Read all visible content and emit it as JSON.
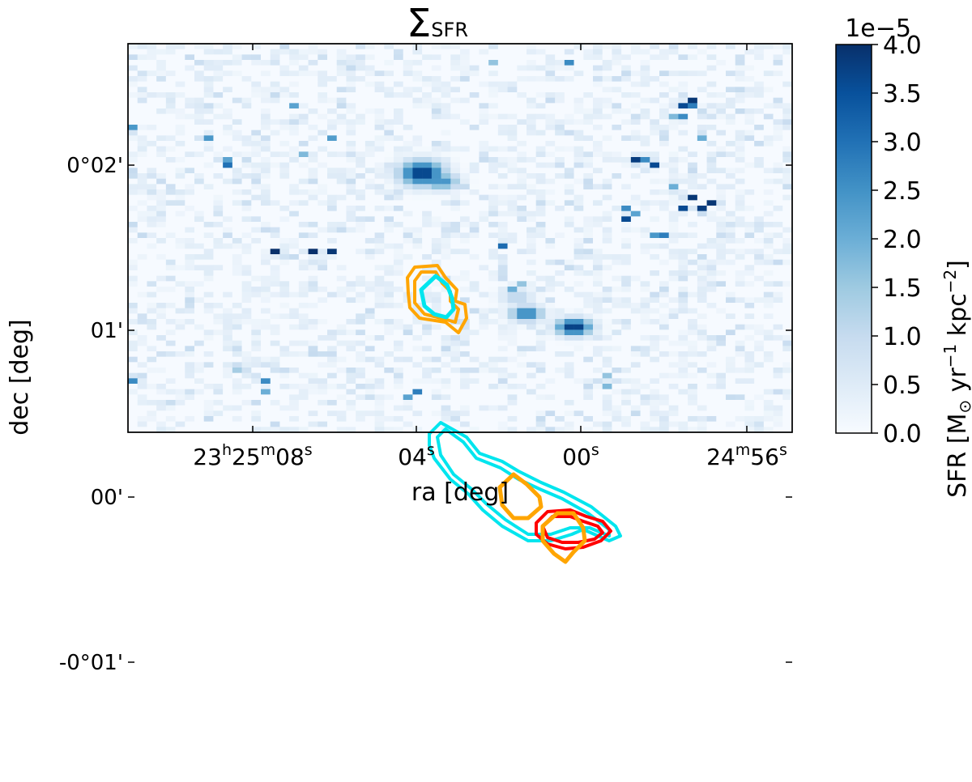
{
  "chart_data": {
    "type": "heatmap",
    "title": "Σ",
    "title_subscript": "SFR",
    "xlabel": "ra [deg]",
    "ylabel": "dec [deg]",
    "x_ticks": [
      {
        "main": "23",
        "sup1": "h",
        "mid": "25",
        "sup2": "m",
        "end": "08",
        "sup3": "s"
      },
      {
        "main": "04",
        "sup1": "s"
      },
      {
        "main": "00",
        "sup1": "s"
      },
      {
        "main": "24",
        "sup1": "m",
        "mid": "56",
        "sup2": "s"
      }
    ],
    "y_ticks": [
      "0°02'",
      "01'",
      "00'",
      "-0°01'"
    ],
    "colorbar": {
      "label_main": "SFR [M",
      "label_sun": "⊙",
      "label_units": " yr",
      "label_exp1": "−1",
      "label_units2": " kpc",
      "label_exp2": "−2",
      "label_end": "]",
      "multiplier": "1e−5",
      "ticks": [
        "0.0",
        "0.5",
        "1.0",
        "1.5",
        "2.0",
        "2.5",
        "3.0",
        "3.5",
        "4.0"
      ],
      "range": [
        0.0,
        4.0
      ],
      "cmap": [
        "#f7fbff",
        "#deebf7",
        "#c6dbef",
        "#9ecae1",
        "#6baed6",
        "#4292c6",
        "#2171b5",
        "#08519c",
        "#08306b"
      ]
    },
    "grid": false,
    "contour_colors": {
      "cyan": "#00e5ee",
      "orange": "#ffa500",
      "red": "#ff0000"
    },
    "image_grid": {
      "cols": 70,
      "rows": 72
    },
    "bright_pixels": [
      [
        38,
        3,
        1.6
      ],
      [
        46,
        3,
        2.6
      ],
      [
        17,
        11,
        2.2
      ],
      [
        59,
        10,
        3.9
      ],
      [
        58,
        11,
        3.6
      ],
      [
        59,
        11,
        2.8
      ],
      [
        0,
        15,
        2.4
      ],
      [
        57,
        13,
        1.8
      ],
      [
        58,
        13,
        2.6
      ],
      [
        8,
        17,
        2.4
      ],
      [
        21,
        17,
        2.3
      ],
      [
        60,
        17,
        2.0
      ],
      [
        18,
        20,
        1.8
      ],
      [
        53,
        21,
        3.8
      ],
      [
        54,
        21,
        2.6
      ],
      [
        55,
        22,
        3.6
      ],
      [
        10,
        22,
        3.0
      ],
      [
        10,
        21,
        2.2
      ],
      [
        57,
        26,
        2.0
      ],
      [
        59,
        28,
        3.9
      ],
      [
        58,
        30,
        3.6
      ],
      [
        60,
        30,
        3.8
      ],
      [
        61,
        29,
        3.9
      ],
      [
        52,
        30,
        2.6
      ],
      [
        52,
        32,
        3.6
      ],
      [
        53,
        31,
        2.2
      ],
      [
        55,
        35,
        2.4
      ],
      [
        56,
        35,
        2.8
      ],
      [
        39,
        37,
        3.1
      ],
      [
        15,
        38,
        4.0
      ],
      [
        19,
        38,
        4.0
      ],
      [
        21,
        38,
        3.9
      ],
      [
        41,
        44,
        1.6
      ],
      [
        40,
        45,
        2.0
      ],
      [
        0,
        62,
        2.6
      ],
      [
        14,
        62,
        2.6
      ],
      [
        14,
        64,
        2.0
      ],
      [
        30,
        64,
        2.8
      ],
      [
        29,
        65,
        2.2
      ],
      [
        50,
        61,
        1.6
      ],
      [
        50,
        63,
        1.8
      ],
      [
        11,
        60,
        1.4
      ]
    ],
    "blobs": [
      {
        "x": 30.5,
        "y": 23.5,
        "peak": 4.0,
        "sx": 1.6,
        "sy": 1.6
      },
      {
        "x": 32.5,
        "y": 25,
        "peak": 2.6,
        "sx": 1.3,
        "sy": 1.1
      },
      {
        "x": 41.5,
        "y": 49.5,
        "peak": 3.0,
        "sx": 1.2,
        "sy": 1.0
      },
      {
        "x": 46.5,
        "y": 52,
        "peak": 4.0,
        "sx": 1.3,
        "sy": 1.1
      },
      {
        "x": 40.5,
        "y": 46.5,
        "peak": 1.2,
        "sx": 1.2,
        "sy": 1.2
      }
    ]
  }
}
